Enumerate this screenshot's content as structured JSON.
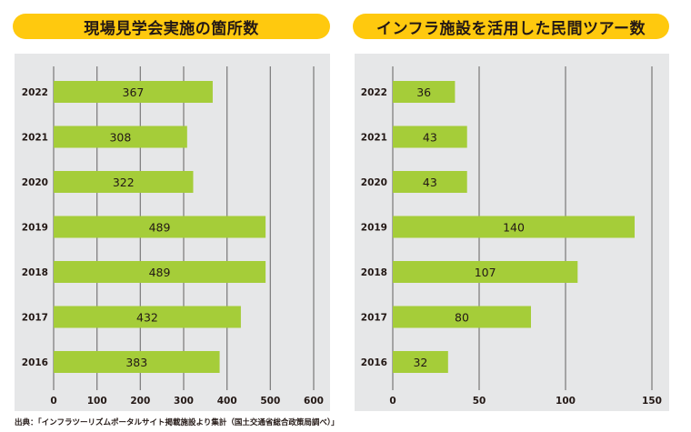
{
  "source_note": "出典：「インフラツーリズムポータルサイト掲載施設より集計（国土交通省総合政策局調べ）」",
  "colors": {
    "title_bg": "#FFC90E",
    "panel_bg": "#E6E7E8",
    "bar": "#A5CD39",
    "grid": "#808080",
    "text": "#231815"
  },
  "chart_data": [
    {
      "type": "bar",
      "orientation": "horizontal",
      "title": "現場見学会実施の箇所数",
      "categories": [
        "2022",
        "2021",
        "2020",
        "2019",
        "2018",
        "2017",
        "2016"
      ],
      "values": [
        367,
        308,
        322,
        489,
        489,
        432,
        383
      ],
      "xlabel": "",
      "ylabel": "",
      "xlim": [
        0,
        600
      ],
      "xticks": [
        "0",
        "100",
        "200",
        "300",
        "400",
        "500",
        "600"
      ],
      "grid": true,
      "data_labels": true
    },
    {
      "type": "bar",
      "orientation": "horizontal",
      "title": "インフラ施設を活用した民間ツアー数",
      "categories": [
        "2022",
        "2021",
        "2020",
        "2019",
        "2018",
        "2017",
        "2016"
      ],
      "values": [
        36,
        43,
        43,
        140,
        107,
        80,
        32
      ],
      "xlabel": "",
      "ylabel": "",
      "xlim": [
        0,
        150
      ],
      "xticks": [
        "0",
        "50",
        "100",
        "150"
      ],
      "grid": true,
      "data_labels": true
    }
  ]
}
